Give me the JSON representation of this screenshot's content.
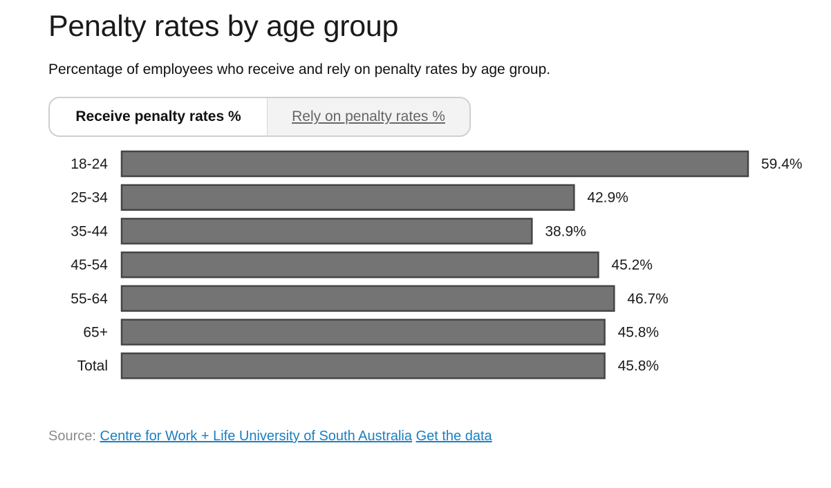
{
  "header": {
    "title": "Penalty rates by age group",
    "subtitle": "Percentage of employees who receive and rely on penalty rates by age group."
  },
  "tabs": [
    {
      "label": "Receive penalty rates %",
      "active": true
    },
    {
      "label": "Rely on penalty rates %",
      "active": false
    }
  ],
  "chart_data": {
    "type": "bar",
    "orientation": "horizontal",
    "categories": [
      "18-24",
      "25-34",
      "35-44",
      "45-54",
      "55-64",
      "65+",
      "Total"
    ],
    "values": [
      59.4,
      42.9,
      38.9,
      45.2,
      46.7,
      45.8,
      45.8
    ],
    "value_labels": [
      "59.4%",
      "42.9%",
      "38.9%",
      "45.2%",
      "46.7%",
      "45.8%",
      "45.8%"
    ],
    "bar_color": "#747474",
    "bar_outline_color": "#454545",
    "grid": false
  },
  "footer": {
    "source_prefix": "Source:",
    "source_link": "Centre for Work + Life University of South Australia",
    "data_link": "Get the data"
  },
  "colors": {
    "link": "#1a7fc1",
    "muted_text": "#8a8a8a"
  }
}
